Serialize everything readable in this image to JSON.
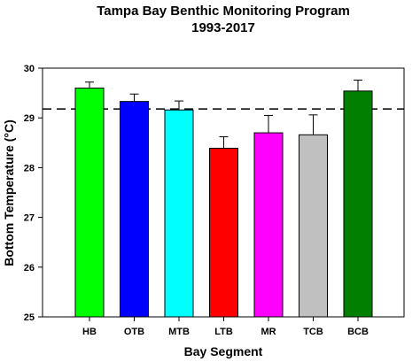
{
  "chart_data": {
    "type": "bar",
    "title": "Tampa Bay Benthic Monitoring Program",
    "subtitle": "1993-2017",
    "xlabel": "Bay Segment",
    "ylabel": "Bottom Temperature (°C)",
    "ylim": [
      25,
      30
    ],
    "yticks": [
      "25",
      "26",
      "27",
      "28",
      "29",
      "30"
    ],
    "categories": [
      "HB",
      "OTB",
      "MTB",
      "LTB",
      "MR",
      "TCB",
      "BCB"
    ],
    "values": [
      29.6,
      29.33,
      29.16,
      28.39,
      28.7,
      28.66,
      29.54
    ],
    "error_upper": [
      29.72,
      29.48,
      29.34,
      28.62,
      29.05,
      29.06,
      29.76
    ],
    "colors": [
      "#00ff00",
      "#0000ff",
      "#00ffff",
      "#ff0000",
      "#ff00ff",
      "#c0c0c0",
      "#007f00"
    ],
    "reference_line": 29.18,
    "grid": false,
    "legend": "none"
  }
}
